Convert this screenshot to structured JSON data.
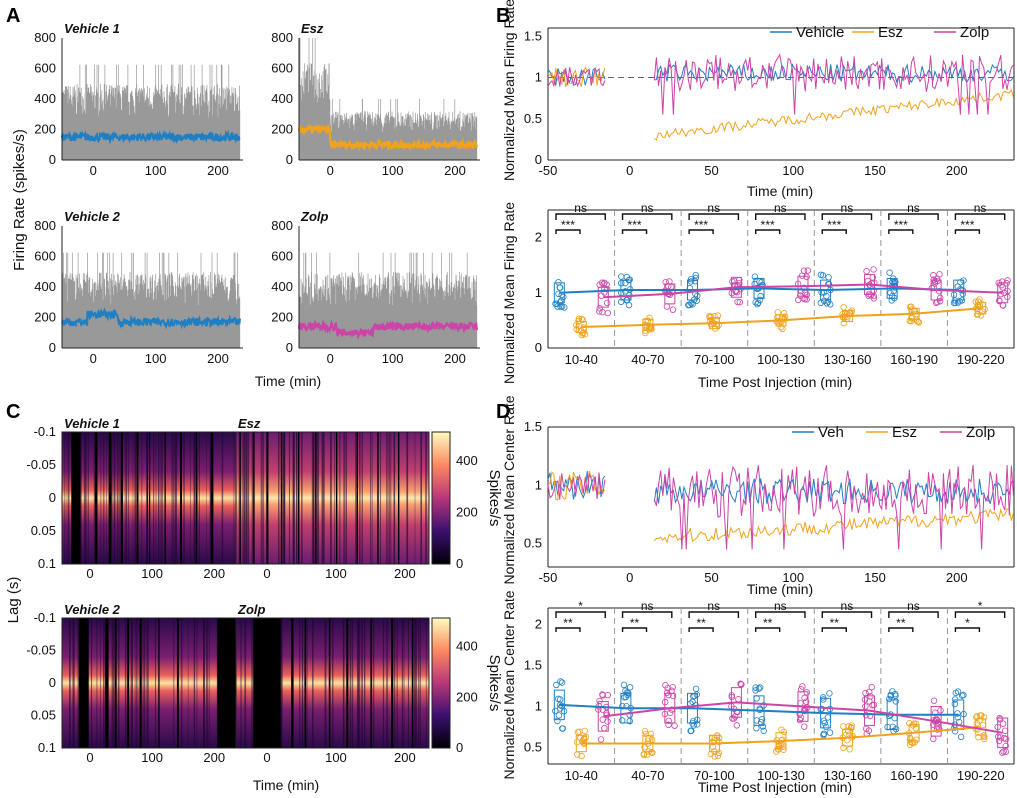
{
  "colors": {
    "vehicle": "#1f7fc4",
    "esz": "#f0a21e",
    "zolp": "#cc44a8",
    "raster": "#999999",
    "sig_star": "#e0301e"
  },
  "panels": {
    "a": "A",
    "b": "B",
    "c": "C",
    "d": "D"
  },
  "chart_data": [
    {
      "id": "A",
      "type": "line",
      "ylabel": "Firing Rate (spikes/s)",
      "xlabel": "Time (min)",
      "xlim": [
        -50,
        240
      ],
      "ylim": [
        0,
        800
      ],
      "xticks": [
        "0",
        "100",
        "200"
      ],
      "yticks": [
        "0",
        "200",
        "400",
        "600",
        "800"
      ],
      "series": [
        {
          "name": "Vehicle 1",
          "color": "#1f7fc4",
          "baseline": 150,
          "raster_level": 500
        },
        {
          "name": "Esz",
          "color": "#f0a21e",
          "baseline_pre": 200,
          "baseline_post": 100,
          "raster_level": 300
        },
        {
          "name": "Vehicle 2",
          "color": "#1f7fc4",
          "baseline": 170,
          "raster_level": 500
        },
        {
          "name": "Zolp",
          "color": "#cc44a8",
          "baseline": 140,
          "raster_level": 500
        }
      ]
    },
    {
      "id": "B-top",
      "type": "line",
      "ylabel": "Normalized Mean Firing Rate",
      "xlabel": "Time (min)",
      "xlim": [
        -50,
        235
      ],
      "ylim": [
        0,
        1.6
      ],
      "xticks": [
        "-50",
        "0",
        "50",
        "100",
        "150",
        "200"
      ],
      "yticks": [
        "0",
        "0.5",
        "1",
        "1.5"
      ],
      "legend": [
        "Vehicle",
        "Esz",
        "Zolp"
      ],
      "series": [
        {
          "name": "Vehicle",
          "level_pre": 1.0,
          "level_post": 1.05
        },
        {
          "name": "Esz",
          "level_pre": 1.0,
          "level_post_start": 0.3,
          "level_post_end": 0.8
        },
        {
          "name": "Zolp",
          "level_pre": 1.0,
          "level_post": 1.05
        }
      ]
    },
    {
      "id": "B-bottom",
      "type": "box",
      "ylabel": "Normalized Mean Firing Rate",
      "xlabel": "Time Post Injection (min)",
      "ylim": [
        0,
        2.5
      ],
      "yticks": [
        "0",
        "1",
        "2"
      ],
      "categories": [
        "10-40",
        "40-70",
        "70-100",
        "100-130",
        "130-160",
        "160-190",
        "190-220"
      ],
      "series": [
        {
          "name": "Vehicle",
          "values": [
            1.0,
            1.05,
            1.05,
            1.08,
            1.05,
            1.08,
            1.05
          ]
        },
        {
          "name": "Esz",
          "values": [
            0.38,
            0.42,
            0.45,
            0.5,
            0.58,
            0.62,
            0.72
          ]
        },
        {
          "name": "Zolp",
          "values": [
            0.92,
            0.98,
            1.1,
            1.12,
            1.15,
            1.05,
            1.0
          ]
        }
      ],
      "significance": [
        {
          "lower": "***",
          "upper": "ns"
        },
        {
          "lower": "***",
          "upper": "ns"
        },
        {
          "lower": "***",
          "upper": "ns"
        },
        {
          "lower": "***",
          "upper": "ns"
        },
        {
          "lower": "***",
          "upper": "ns"
        },
        {
          "lower": "***",
          "upper": "ns"
        },
        {
          "lower": "***",
          "upper": "ns"
        }
      ]
    },
    {
      "id": "C",
      "type": "heatmap",
      "ylabel": "Lag (s)",
      "xlabel": "Time (min)",
      "xticks": [
        "0",
        "100",
        "200"
      ],
      "yticks": [
        "-0.1",
        "-0.05",
        "0",
        "0.05",
        "0.1"
      ],
      "colorbar_ticks": [
        "0",
        "200",
        "400"
      ],
      "colorbar_label": "Spikes/s",
      "subplots": [
        "Vehicle 1",
        "Esz",
        "Vehicle 2",
        "Zolp"
      ]
    },
    {
      "id": "D-top",
      "type": "line",
      "ylabel": "Normalized Mean Center Rate",
      "xlabel": "Time (min)",
      "xlim": [
        -50,
        235
      ],
      "ylim": [
        0.3,
        1.5
      ],
      "xticks": [
        "-50",
        "0",
        "50",
        "100",
        "150",
        "200"
      ],
      "yticks": [
        "0.5",
        "1",
        "1.5"
      ],
      "legend": [
        "Veh",
        "Esz",
        "Zolp"
      ],
      "series": [
        {
          "name": "Veh",
          "level_pre": 1.0,
          "level_post": 0.95
        },
        {
          "name": "Esz",
          "level_pre": 1.0,
          "level_post_start": 0.55,
          "level_post_end": 0.75
        },
        {
          "name": "Zolp",
          "level_pre": 1.0,
          "level_post": 0.95
        }
      ]
    },
    {
      "id": "D-bottom",
      "type": "box",
      "ylabel": "Normalized Mean Center Rate",
      "xlabel": "Time Post Injection (min)",
      "ylim": [
        0.3,
        2.2
      ],
      "yticks": [
        "0.5",
        "1",
        "1.5",
        "2"
      ],
      "categories": [
        "10-40",
        "40-70",
        "70-100",
        "100-130",
        "130-160",
        "160-190",
        "190-220"
      ],
      "series": [
        {
          "name": "Veh",
          "values": [
            1.02,
            0.98,
            0.98,
            0.95,
            0.92,
            0.9,
            0.9
          ]
        },
        {
          "name": "Esz",
          "values": [
            0.55,
            0.55,
            0.55,
            0.58,
            0.62,
            0.68,
            0.75
          ]
        },
        {
          "name": "Zolp",
          "values": [
            0.88,
            0.98,
            1.05,
            1.0,
            0.95,
            0.82,
            0.68
          ]
        }
      ],
      "significance": [
        {
          "lower": "**",
          "upper": "*"
        },
        {
          "lower": "**",
          "upper": "ns"
        },
        {
          "lower": "**",
          "upper": "ns"
        },
        {
          "lower": "**",
          "upper": "ns"
        },
        {
          "lower": "**",
          "upper": "ns"
        },
        {
          "lower": "**",
          "upper": "ns"
        },
        {
          "lower": "*",
          "upper": "*"
        }
      ]
    }
  ]
}
